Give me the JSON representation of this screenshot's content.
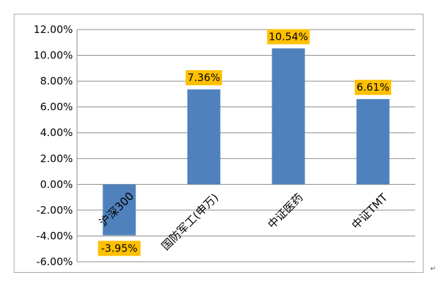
{
  "chart_data": {
    "type": "bar",
    "categories": [
      "沪深300",
      "国防军工(申万)",
      "中证医药",
      "中证TMT"
    ],
    "values": [
      -3.95,
      7.36,
      10.54,
      6.61
    ],
    "data_labels": [
      "-3.95%",
      "7.36%",
      "10.54%",
      "6.61%"
    ],
    "y_ticks": [
      "12.00%",
      "10.00%",
      "8.00%",
      "6.00%",
      "4.00%",
      "2.00%",
      "0.00%",
      "-2.00%",
      "-4.00%",
      "-6.00%"
    ],
    "ylim": [
      -6,
      12
    ],
    "ystep": 2,
    "title": "",
    "xlabel": "",
    "ylabel": "",
    "grid": true,
    "legend": "none",
    "bar_color": "#4f81bd",
    "label_bg_color": "#ffc000"
  },
  "footer_mark": "↵"
}
